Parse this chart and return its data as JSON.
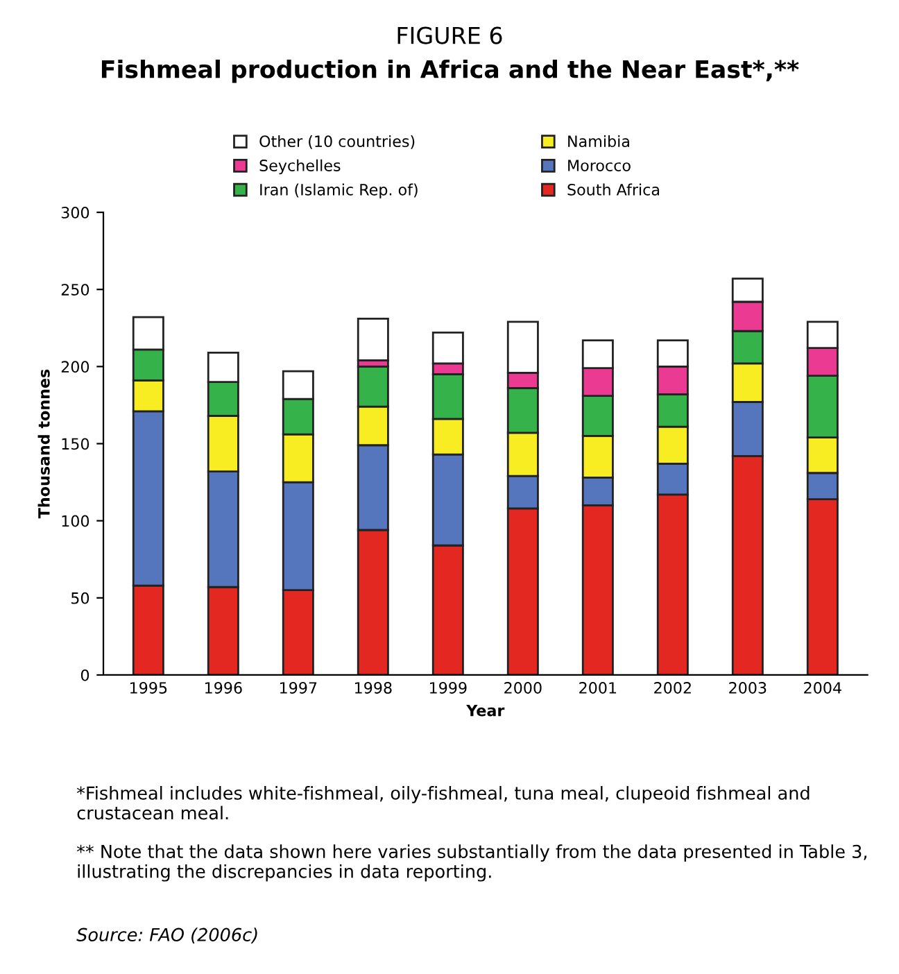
{
  "chart_data": {
    "type": "bar",
    "title": "FIGURE 6",
    "subtitle": "Fishmeal production in Africa and the Near East*,**",
    "xlabel": "Year",
    "ylabel": "Thousand tonnes",
    "categories": [
      "1995",
      "1996",
      "1997",
      "1998",
      "1999",
      "2000",
      "2001",
      "2002",
      "2003",
      "2004"
    ],
    "stacked": true,
    "series": [
      {
        "name": "South Africa",
        "color": "#e32822",
        "values": [
          58,
          57,
          55,
          94,
          84,
          108,
          110,
          117,
          142,
          114
        ]
      },
      {
        "name": "Morocco",
        "color": "#5575bd",
        "values": [
          113,
          75,
          70,
          55,
          59,
          21,
          18,
          20,
          35,
          17
        ]
      },
      {
        "name": "Namibia",
        "color": "#f8ec22",
        "values": [
          20,
          36,
          31,
          25,
          23,
          28,
          27,
          24,
          25,
          23
        ]
      },
      {
        "name": "Iran (Islamic Rep. of)",
        "color": "#36b24a",
        "values": [
          20,
          22,
          23,
          26,
          29,
          29,
          26,
          21,
          21,
          40
        ]
      },
      {
        "name": "Seychelles",
        "color": "#ea3a92",
        "values": [
          null,
          null,
          null,
          4,
          7,
          10,
          18,
          18,
          19,
          18
        ]
      },
      {
        "name": "Other (10 countries)",
        "color": "#ffffff",
        "values": [
          21,
          19,
          18,
          27,
          20,
          33,
          18,
          17,
          15,
          17
        ]
      }
    ],
    "ylim": [
      0,
      300
    ],
    "yticks": [
      0,
      50,
      100,
      150,
      200,
      250,
      300
    ],
    "legend": "top",
    "grid": false,
    "annotations": [
      "*Fishmeal includes white-fishmeal, oily-fishmeal, tuna meal, clupeoid fishmeal and crustacean meal.",
      "** Note that the data shown here varies substantially from the data presented in Table 3, illustrating the discrepancies in data reporting.",
      "Source: FAO (2006c)"
    ]
  }
}
